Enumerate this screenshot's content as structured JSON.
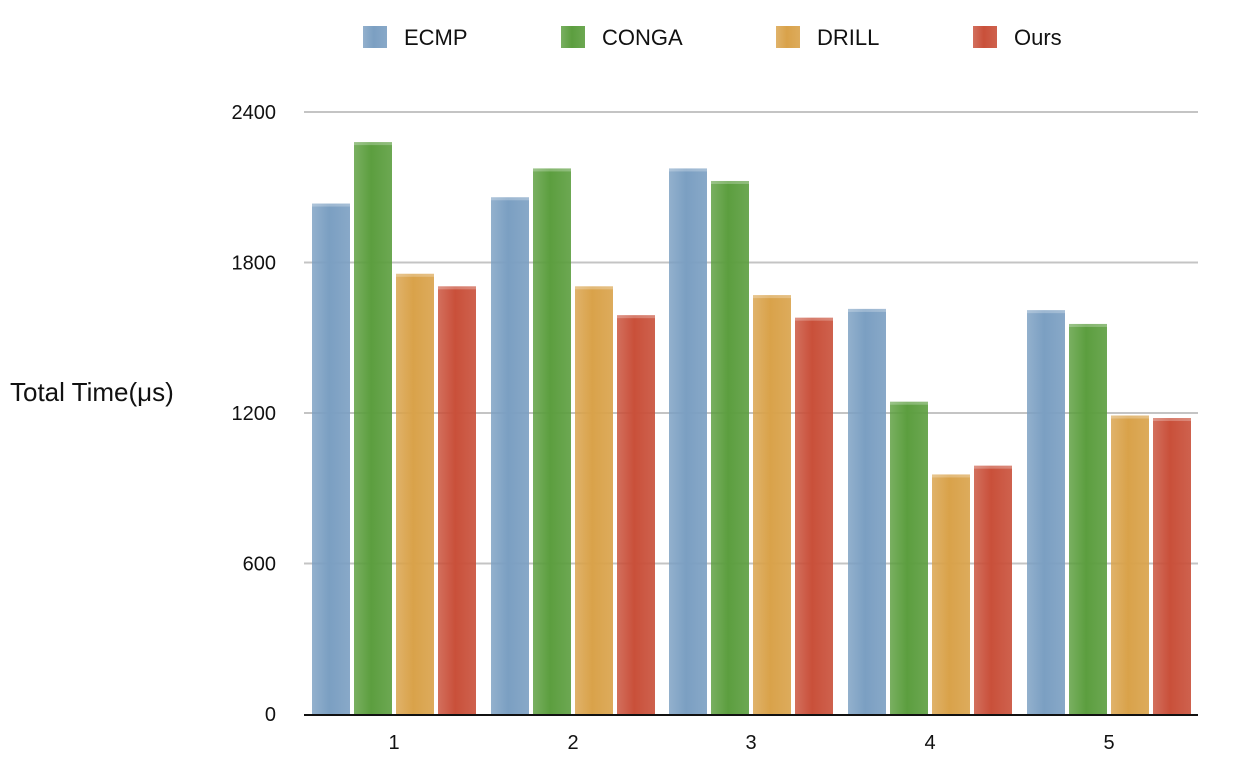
{
  "chart_data": {
    "type": "bar",
    "title": "",
    "xlabel": "",
    "ylabel": "Total Time(μs)",
    "categories": [
      "1",
      "2",
      "3",
      "4",
      "5"
    ],
    "series": [
      {
        "name": "ECMP",
        "color": "#7b9fc2",
        "values": [
          2035,
          2060,
          2175,
          1615,
          1610
        ]
      },
      {
        "name": "CONGA",
        "color": "#5c9e3f",
        "values": [
          2280,
          2175,
          2125,
          1245,
          1555
        ]
      },
      {
        "name": "DRILL",
        "color": "#d9a24a",
        "values": [
          1755,
          1705,
          1670,
          955,
          1190
        ]
      },
      {
        "name": "Ours",
        "color": "#c9503a",
        "values": [
          1705,
          1590,
          1580,
          990,
          1180
        ]
      }
    ],
    "ylim": [
      0,
      2400
    ],
    "yticks": [
      0,
      600,
      1200,
      1800,
      2400
    ],
    "grid": true,
    "legend_position": "top"
  }
}
